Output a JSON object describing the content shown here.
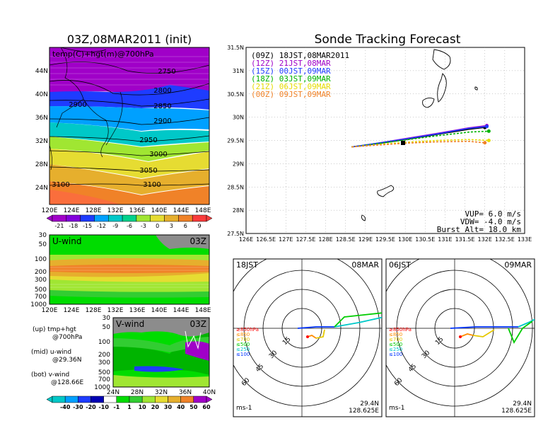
{
  "page": {
    "left_title": "03Z,08MAR2011 (init)",
    "right_title": "Sonde Tracking Forecast",
    "temp_map_label": "temp(C)+hgt(m)@700hPa",
    "contour_labels": [
      "2750",
      "2800",
      "2850",
      "2900",
      "2900",
      "2950",
      "3000",
      "3050",
      "3100",
      "3100"
    ],
    "lon_ticks_left": [
      "120E",
      "124E",
      "128E",
      "132E",
      "136E",
      "140E",
      "144E",
      "148E"
    ],
    "lat_ticks_left": [
      "44N",
      "40N",
      "36N",
      "32N",
      "28N",
      "24N"
    ],
    "temp_colorbar_labels": [
      "-21",
      "-18",
      "-15",
      "-12",
      "-9",
      "-6",
      "-3",
      "0",
      "3",
      "6",
      "9"
    ],
    "uwind": {
      "label": "U-wind",
      "time": "03Z",
      "pressure_ticks": [
        "30",
        "50",
        "100",
        "200",
        "300",
        "500",
        "700",
        "1000"
      ]
    },
    "vwind": {
      "label": "V-wind",
      "time": "03Z",
      "pressure_ticks": [
        "30",
        "50",
        "100",
        "200",
        "300",
        "500",
        "700",
        "1000"
      ],
      "lat_ticks": [
        "24N",
        "28N",
        "32N",
        "36N",
        "40N"
      ]
    },
    "side_notes": [
      {
        "a": "(up) tmp+hgt",
        "b": "@700hPa"
      },
      {
        "a": "(mid) u-wind",
        "b": "@29.36N"
      },
      {
        "a": "(bot) v-wind",
        "b": "@128.66E"
      }
    ],
    "wind_colorbar_labels": [
      "-40",
      "-30",
      "-20",
      "-10",
      "-1",
      "1",
      "10",
      "20",
      "30",
      "40",
      "50",
      "60"
    ],
    "hodo_left": {
      "time": "18JST",
      "date": "08MAR",
      "lat": "29.4N",
      "lon": "128.625E",
      "unit": "ms-1"
    },
    "hodo_right": {
      "time": "06JST",
      "date": "09MAR",
      "lat": "29.4N",
      "lon": "128.625E",
      "unit": "ms-1"
    },
    "hodo_rings": [
      "15",
      "30",
      "45",
      "60"
    ],
    "hodo_legend": [
      {
        "text": "≥850hPa",
        "color": "#ff0000"
      },
      {
        "text": "≤850",
        "color": "#ff8c00"
      },
      {
        "text": "≤700",
        "color": "#e6c800"
      },
      {
        "text": "≤500",
        "color": "#00cc00"
      },
      {
        "text": "≤250",
        "color": "#00c8c8"
      },
      {
        "text": "≤100",
        "color": "#0033ff"
      }
    ],
    "track_params": [
      "VUP=  6.0  m/s",
      "VDW= -4.0  m/s",
      "Burst Alt=  18.0  km"
    ]
  },
  "colors": {
    "temp_fill": [
      "#a000c8",
      "#8200dc",
      "#1e3cff",
      "#00a0ff",
      "#00c8c8",
      "#00d28c",
      "#a0e632",
      "#e6dc32",
      "#e6af2d",
      "#f08228",
      "#fa3c3c"
    ],
    "wind_fill": [
      "#00c8c8",
      "#00a0ff",
      "#1e3cff",
      "#0000b4",
      "#ffffff",
      "#00dc00",
      "#32cd32",
      "#a0e632",
      "#e6dc32",
      "#e6af2d",
      "#f08228",
      "#a000c8"
    ]
  },
  "chart_data": {
    "type": "line",
    "title": "Sonde Tracking Forecast",
    "xlim": [
      126,
      133
    ],
    "ylim": [
      27.5,
      31.5
    ],
    "x_ticks": [
      "126E",
      "126.5E",
      "127E",
      "127.5E",
      "128E",
      "128.5E",
      "129E",
      "129.5E",
      "130E",
      "130.5E",
      "131E",
      "131.5E",
      "132E",
      "132.5E",
      "133E"
    ],
    "y_ticks": [
      "27.5N",
      "28N",
      "28.5N",
      "29N",
      "29.5N",
      "30N",
      "30.5N",
      "31N",
      "31.5N"
    ],
    "grid": true,
    "legend_position": "top-left",
    "series": [
      {
        "name": "(09Z)  18JST,08MAR2011",
        "color": "#000000",
        "x": [
          128.65,
          129.3,
          130.0,
          130.8,
          131.6,
          132.0
        ],
        "y": [
          29.36,
          29.43,
          29.52,
          29.63,
          29.74,
          29.78
        ]
      },
      {
        "name": "(12Z)  21JST,08MAR",
        "color": "#a000c8",
        "x": [
          128.65,
          129.3,
          130.0,
          130.8,
          131.6,
          132.05
        ],
        "y": [
          29.36,
          29.44,
          29.54,
          29.65,
          29.77,
          29.82
        ]
      },
      {
        "name": "(15Z)  00JST,09MAR",
        "color": "#1e3cff",
        "x": [
          128.65,
          129.3,
          130.0,
          130.8,
          131.6,
          132.05
        ],
        "y": [
          29.36,
          29.44,
          29.53,
          29.64,
          29.76,
          29.8
        ]
      },
      {
        "name": "(18Z)  03JST,09MAR",
        "color": "#00b400",
        "x": [
          128.65,
          129.3,
          130.0,
          130.8,
          131.6,
          132.1
        ],
        "y": [
          29.36,
          29.43,
          29.51,
          29.6,
          29.68,
          29.7
        ]
      },
      {
        "name": "(21Z)  06JST,09MAR",
        "color": "#e6dc00",
        "x": [
          128.65,
          129.3,
          130.0,
          130.8,
          131.6,
          132.1
        ],
        "y": [
          29.36,
          29.41,
          29.46,
          29.5,
          29.52,
          29.5
        ]
      },
      {
        "name": "(00Z)  09JST,09MAR",
        "color": "#f08228",
        "x": [
          128.65,
          129.3,
          130.0,
          130.8,
          131.6,
          132.0
        ],
        "y": [
          29.36,
          29.4,
          29.44,
          29.47,
          29.48,
          29.45
        ]
      }
    ]
  }
}
